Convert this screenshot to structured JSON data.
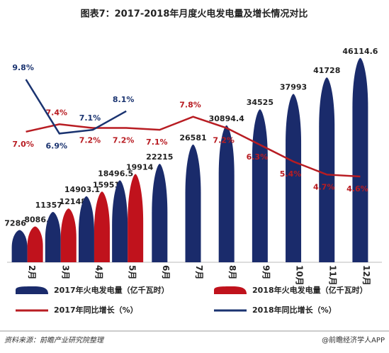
{
  "chart_data": {
    "type": "bar",
    "title": "图表7：2017-2018年月度火电发电量及增长情况对比",
    "categories": [
      "2月",
      "3月",
      "4月",
      "5月",
      "6月",
      "7月",
      "8月",
      "9月",
      "10月",
      "11月",
      "12月"
    ],
    "series": [
      {
        "name": "2017年火电发电量（亿千瓦时）",
        "color": "#1a2b6b",
        "type": "bar",
        "values": [
          7286,
          11357,
          14903.1,
          18496.5,
          22215,
          26581,
          30894.4,
          34525,
          37993,
          41728,
          46114.6
        ]
      },
      {
        "name": "2018年火电发电量（亿千瓦时）",
        "color": "#c0121c",
        "type": "bar",
        "values": [
          8086.5,
          12148,
          15951,
          19914,
          null,
          null,
          null,
          null,
          null,
          null,
          null
        ]
      },
      {
        "name": "2017年同比增长（%）",
        "color": "#b81c22",
        "type": "line",
        "axis": "y2",
        "values": [
          7.0,
          7.4,
          7.2,
          7.2,
          7.1,
          7.8,
          7.2,
          6.3,
          5.4,
          4.7,
          4.6
        ],
        "value_labels": [
          "7.0%",
          "7.4%",
          "7.2%",
          "7.2%",
          "7.1%",
          "7.8%",
          "7.2%",
          "6.3%",
          "5.4%",
          "4.7%",
          "4.6%"
        ]
      },
      {
        "name": "2018年同比增长（%）",
        "color": "#1a3370",
        "type": "line",
        "axis": "y2",
        "values": [
          9.8,
          6.9,
          7.1,
          8.1,
          null,
          null,
          null,
          null,
          null,
          null,
          null
        ],
        "value_labels": [
          "9.8%",
          "6.9%",
          "7.1%",
          "8.1%",
          null,
          null,
          null,
          null,
          null,
          null,
          null
        ]
      }
    ],
    "ylim": [
      0,
      48000
    ],
    "y2lim": [
      0,
      11.4
    ],
    "source": "资料来源：前瞻产业研究院整理",
    "credit": "@前瞻经济学人APP"
  }
}
